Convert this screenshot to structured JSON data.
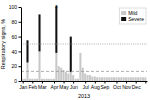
{
  "chart_data": {
    "type": "bar",
    "stacked": true,
    "xlabel": "2013",
    "ylabel": "Respiratory signs, %",
    "x": [
      1,
      2,
      3,
      4,
      5,
      6,
      7,
      8,
      9,
      10,
      11,
      12,
      13,
      14,
      15,
      16,
      17,
      18,
      19,
      20,
      21,
      22,
      23,
      24,
      25,
      26,
      27,
      28,
      29,
      30,
      31,
      32,
      33,
      34,
      35,
      36,
      37,
      38,
      39,
      40,
      41,
      42,
      43,
      44,
      45,
      46,
      47,
      48,
      49,
      50,
      51,
      52
    ],
    "series": [
      {
        "name": "Mild",
        "color": "#c8c8c8",
        "values": [
          3,
          3,
          25,
          3,
          3,
          3,
          3,
          40,
          3,
          3,
          3,
          3,
          3,
          3,
          38,
          20,
          18,
          15,
          12,
          10,
          12,
          8,
          3,
          3,
          38,
          18,
          10,
          8,
          8,
          6,
          6,
          5,
          5,
          5,
          5,
          5,
          5,
          5,
          5,
          5,
          5,
          5,
          5,
          5,
          5,
          5,
          5,
          5,
          5,
          5,
          5,
          5
        ]
      },
      {
        "name": "Severe",
        "color": "#111111",
        "values": [
          0,
          0,
          30,
          0,
          0,
          0,
          0,
          50,
          0,
          0,
          0,
          0,
          0,
          0,
          62,
          0,
          0,
          0,
          0,
          0,
          48,
          0,
          0,
          0,
          0,
          0,
          0,
          0,
          0,
          0,
          0,
          0,
          0,
          0,
          0,
          0,
          0,
          0,
          0,
          0,
          0,
          0,
          0,
          0,
          0,
          0,
          0,
          0,
          0,
          0,
          0,
          0
        ]
      }
    ],
    "xlim": [
      0.3,
      52.7
    ],
    "xticks": [
      {
        "value": 1,
        "label": "Jan"
      },
      {
        "value": 5,
        "label": "Feb"
      },
      {
        "value": 9,
        "label": "Mar"
      },
      {
        "value": 14,
        "label": "Apr"
      },
      {
        "value": 18,
        "label": "May"
      },
      {
        "value": 22,
        "label": "Jun"
      },
      {
        "value": 27,
        "label": "Jul"
      },
      {
        "value": 31,
        "label": "Aug"
      },
      {
        "value": 35,
        "label": "Sep"
      },
      {
        "value": 40,
        "label": "Oct"
      },
      {
        "value": 44,
        "label": "Nov"
      },
      {
        "value": 48,
        "label": "Dec"
      },
      {
        "value": 52,
        "label": null
      }
    ],
    "ylim": [
      0,
      100
    ],
    "yticks": [
      0,
      20,
      40,
      60,
      80,
      100
    ],
    "reference_lines": [
      {
        "value": 13,
        "line_style": "dashed",
        "color": "#999999"
      },
      {
        "value": 50,
        "line_style": "dotted",
        "color": "#999999"
      }
    ],
    "annotations": [
      {
        "text": "*",
        "x": 15
      }
    ],
    "legend": "upper right",
    "grid": false
  }
}
